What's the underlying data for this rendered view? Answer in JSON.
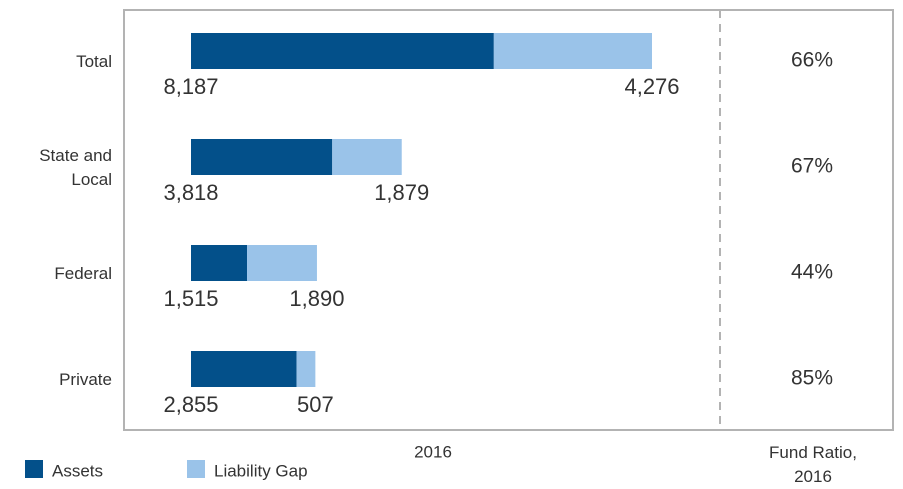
{
  "chart_data": {
    "type": "stacked-bar",
    "categories": [
      "Total",
      "State and Local",
      "Federal",
      "Private"
    ],
    "series": [
      {
        "name": "Assets",
        "color": "#03508a",
        "values": [
          8187,
          3818,
          1515,
          2855
        ],
        "value_labels": [
          "8,187",
          "3,818",
          "1,515",
          "2,855"
        ]
      },
      {
        "name": "Liability Gap",
        "color": "#9ac3e9",
        "values": [
          4276,
          1879,
          1890,
          507
        ],
        "value_labels": [
          "4,276",
          "1,879",
          "1,890",
          "507"
        ]
      }
    ],
    "xlabel": "2016",
    "fund_ratio": {
      "label": "Fund Ratio, 2016",
      "values": [
        66,
        67,
        44,
        85
      ],
      "value_labels": [
        "66%",
        "67%",
        "44%",
        "85%"
      ]
    }
  }
}
